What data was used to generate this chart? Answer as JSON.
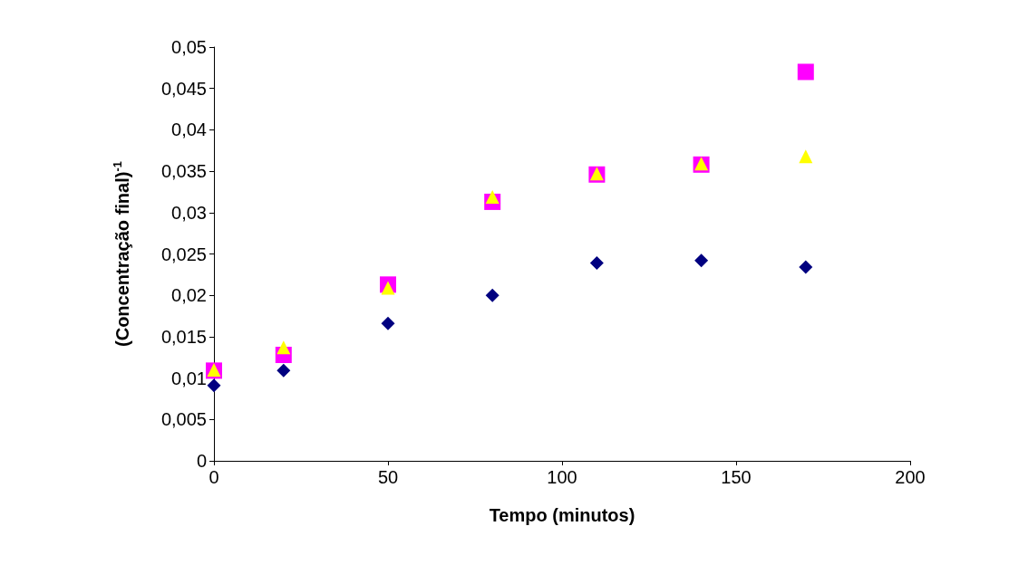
{
  "chart_data": {
    "type": "scatter",
    "xlabel": "Tempo (minutos)",
    "ylabel": "(Concentração final)$^{-1}$",
    "x": [
      0,
      20,
      50,
      80,
      110,
      140,
      170
    ],
    "series": [
      {
        "color": "#000080",
        "marker": "diamond",
        "values": [
          0.0091,
          0.0109,
          0.0166,
          0.02,
          0.0239,
          0.0242,
          0.0234
        ]
      },
      {
        "color": "#ff00ff",
        "marker": "square",
        "values": [
          0.0109,
          0.0128,
          0.0213,
          0.0313,
          0.0346,
          0.0358,
          0.047
        ]
      },
      {
        "color": "#ffff00",
        "marker": "triangle",
        "values": [
          0.011,
          0.0137,
          0.0209,
          0.0319,
          0.0347,
          0.0359,
          0.0368
        ]
      }
    ],
    "xlim": [
      0,
      200
    ],
    "xticks": [
      0,
      50,
      100,
      150,
      200
    ],
    "ylim": [
      0,
      0.05
    ],
    "yticks": [
      0,
      {
        "value": 0.005,
        "label": "0,005"
      },
      {
        "value": 0.01,
        "label": "0,01"
      },
      {
        "value": 0.015,
        "label": "0,015"
      },
      {
        "value": 0.02,
        "label": "0,02"
      },
      {
        "value": 0.025,
        "label": "0,025"
      },
      {
        "value": 0.03,
        "label": "0,03"
      },
      {
        "value": 0.035,
        "label": "0,035"
      },
      {
        "value": 0.04,
        "label": "0,04"
      },
      {
        "value": 0.045,
        "label": "0,045"
      },
      {
        "value": 0.05,
        "label": "0,05"
      }
    ]
  }
}
